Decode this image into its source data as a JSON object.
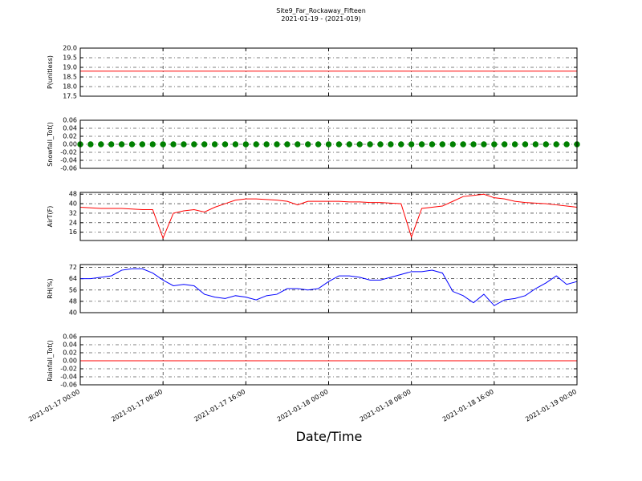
{
  "title": "Site9_Far_Rockaway_Fifteen",
  "subtitle": "2021-01-19 - (2021-019)",
  "xlabel": "Date/Time",
  "chart_data": [
    {
      "type": "line",
      "ylabel": "P(unitless)",
      "color": "#ff0000",
      "grid": true,
      "x": [
        "2021-01-17 00:00",
        "2021-01-19 00:00"
      ],
      "values": [
        18.8,
        18.8
      ],
      "xlim": [
        "2021-01-17 00:00",
        "2021-01-19 00:00"
      ],
      "xticks": [
        "2021-01-17 00:00",
        "2021-01-17 08:00",
        "2021-01-17 16:00",
        "2021-01-18 00:00",
        "2021-01-18 08:00",
        "2021-01-18 16:00",
        "2021-01-19 00:00"
      ],
      "ylim": [
        17.5,
        20.0
      ],
      "yticks": [
        17.5,
        {
          "value": 18,
          "label": "18.0"
        },
        18.5,
        {
          "value": 19,
          "label": "19.0"
        },
        19.5,
        {
          "value": 20,
          "label": "20.0"
        }
      ]
    },
    {
      "type": "scatter",
      "ylabel": "Snowfall_Tot()",
      "color": "#008000",
      "grid": true,
      "x": [
        "2021-01-17 00:00",
        "2021-01-17 01:00",
        "2021-01-17 02:00",
        "2021-01-17 03:00",
        "2021-01-17 04:00",
        "2021-01-17 05:00",
        "2021-01-17 06:00",
        "2021-01-17 07:00",
        "2021-01-17 08:00",
        "2021-01-17 09:00",
        "2021-01-17 10:00",
        "2021-01-17 11:00",
        "2021-01-17 12:00",
        "2021-01-17 13:00",
        "2021-01-17 14:00",
        "2021-01-17 15:00",
        "2021-01-17 16:00",
        "2021-01-17 17:00",
        "2021-01-17 18:00",
        "2021-01-17 19:00",
        "2021-01-17 20:00",
        "2021-01-17 21:00",
        "2021-01-17 22:00",
        "2021-01-17 23:00",
        "2021-01-18 00:00",
        "2021-01-18 01:00",
        "2021-01-18 02:00",
        "2021-01-18 03:00",
        "2021-01-18 04:00",
        "2021-01-18 05:00",
        "2021-01-18 06:00",
        "2021-01-18 07:00",
        "2021-01-18 08:00",
        "2021-01-18 09:00",
        "2021-01-18 10:00",
        "2021-01-18 11:00",
        "2021-01-18 12:00",
        "2021-01-18 13:00",
        "2021-01-18 14:00",
        "2021-01-18 15:00",
        "2021-01-18 16:00",
        "2021-01-18 17:00",
        "2021-01-18 18:00",
        "2021-01-18 19:00",
        "2021-01-18 20:00",
        "2021-01-18 21:00",
        "2021-01-18 22:00",
        "2021-01-18 23:00",
        "2021-01-19 00:00"
      ],
      "values": [
        0,
        0,
        0,
        0,
        0,
        0,
        0,
        0,
        0,
        0,
        0,
        0,
        0,
        0,
        0,
        0,
        0,
        0,
        0,
        0,
        0,
        0,
        0,
        0,
        0,
        0,
        0,
        0,
        0,
        0,
        0,
        0,
        0,
        0,
        0,
        0,
        0,
        0,
        0,
        0,
        0,
        0,
        0,
        0,
        0,
        0,
        0,
        0,
        0
      ],
      "xlim": [
        "2021-01-17 00:00",
        "2021-01-19 00:00"
      ],
      "xticks": [
        "2021-01-17 00:00",
        "2021-01-17 08:00",
        "2021-01-17 16:00",
        "2021-01-18 00:00",
        "2021-01-18 08:00",
        "2021-01-18 16:00",
        "2021-01-19 00:00"
      ],
      "ylim": [
        -0.06,
        0.06
      ],
      "yticks": [
        -0.06,
        -0.04,
        -0.02,
        {
          "value": 0,
          "label": "0.00"
        },
        0.02,
        0.04,
        0.06
      ]
    },
    {
      "type": "line",
      "ylabel": "AirT(F)",
      "color": "#ff0000",
      "grid": true,
      "x": [
        "2021-01-17 00:00",
        "2021-01-17 01:00",
        "2021-01-17 02:00",
        "2021-01-17 03:00",
        "2021-01-17 04:00",
        "2021-01-17 05:00",
        "2021-01-17 06:00",
        "2021-01-17 07:00",
        "2021-01-17 08:00",
        "2021-01-17 09:00",
        "2021-01-17 10:00",
        "2021-01-17 11:00",
        "2021-01-17 12:00",
        "2021-01-17 13:00",
        "2021-01-17 14:00",
        "2021-01-17 15:00",
        "2021-01-17 16:00",
        "2021-01-17 17:00",
        "2021-01-17 18:00",
        "2021-01-17 19:00",
        "2021-01-17 20:00",
        "2021-01-17 21:00",
        "2021-01-17 22:00",
        "2021-01-17 23:00",
        "2021-01-18 00:00",
        "2021-01-18 01:00",
        "2021-01-18 02:00",
        "2021-01-18 03:00",
        "2021-01-18 04:00",
        "2021-01-18 05:00",
        "2021-01-18 06:00",
        "2021-01-18 07:00",
        "2021-01-18 08:00",
        "2021-01-18 09:00",
        "2021-01-18 10:00",
        "2021-01-18 11:00",
        "2021-01-18 12:00",
        "2021-01-18 13:00",
        "2021-01-18 14:00",
        "2021-01-18 15:00",
        "2021-01-18 16:00",
        "2021-01-18 17:00",
        "2021-01-18 18:00",
        "2021-01-18 19:00",
        "2021-01-18 20:00",
        "2021-01-18 21:00",
        "2021-01-18 22:00",
        "2021-01-18 23:00",
        "2021-01-19 00:00"
      ],
      "values": [
        37,
        36.5,
        36,
        36,
        36,
        35.5,
        35,
        35,
        11,
        32,
        34,
        35,
        33,
        37,
        40,
        43,
        44,
        44,
        43.5,
        43,
        42,
        39,
        42,
        42,
        42,
        42,
        41.5,
        41.5,
        41,
        41,
        40.5,
        40,
        12,
        36,
        37,
        38,
        42,
        46,
        47,
        48,
        45,
        44,
        42,
        41,
        40.5,
        40,
        39,
        38,
        37
      ],
      "xlim": [
        "2021-01-17 00:00",
        "2021-01-19 00:00"
      ],
      "xticks": [
        "2021-01-17 00:00",
        "2021-01-17 08:00",
        "2021-01-17 16:00",
        "2021-01-18 00:00",
        "2021-01-18 08:00",
        "2021-01-18 16:00",
        "2021-01-19 00:00"
      ],
      "ylim": [
        9,
        49.5
      ],
      "yticks": [
        16,
        24,
        32,
        40,
        48
      ]
    },
    {
      "type": "line",
      "ylabel": "RH(%)",
      "color": "#0000ff",
      "grid": true,
      "x": [
        "2021-01-17 00:00",
        "2021-01-17 01:00",
        "2021-01-17 02:00",
        "2021-01-17 03:00",
        "2021-01-17 04:00",
        "2021-01-17 05:00",
        "2021-01-17 06:00",
        "2021-01-17 07:00",
        "2021-01-17 08:00",
        "2021-01-17 09:00",
        "2021-01-17 10:00",
        "2021-01-17 11:00",
        "2021-01-17 12:00",
        "2021-01-17 13:00",
        "2021-01-17 14:00",
        "2021-01-17 15:00",
        "2021-01-17 16:00",
        "2021-01-17 17:00",
        "2021-01-17 18:00",
        "2021-01-17 19:00",
        "2021-01-17 20:00",
        "2021-01-17 21:00",
        "2021-01-17 22:00",
        "2021-01-17 23:00",
        "2021-01-18 00:00",
        "2021-01-18 01:00",
        "2021-01-18 02:00",
        "2021-01-18 03:00",
        "2021-01-18 04:00",
        "2021-01-18 05:00",
        "2021-01-18 06:00",
        "2021-01-18 07:00",
        "2021-01-18 08:00",
        "2021-01-18 09:00",
        "2021-01-18 10:00",
        "2021-01-18 11:00",
        "2021-01-18 12:00",
        "2021-01-18 13:00",
        "2021-01-18 14:00",
        "2021-01-18 15:00",
        "2021-01-18 16:00",
        "2021-01-18 17:00",
        "2021-01-18 18:00",
        "2021-01-18 19:00",
        "2021-01-18 20:00",
        "2021-01-18 21:00",
        "2021-01-18 22:00",
        "2021-01-18 23:00",
        "2021-01-19 00:00"
      ],
      "values": [
        64,
        64,
        65,
        66,
        70,
        71,
        71,
        68,
        63,
        59,
        60,
        59,
        53,
        51,
        50,
        52,
        51,
        49,
        52,
        53,
        57,
        57,
        56,
        57,
        62,
        66,
        66,
        65,
        63,
        63,
        65,
        67,
        69,
        69,
        70,
        68,
        55,
        52,
        47,
        53,
        45,
        49,
        50,
        52,
        57,
        61,
        66,
        60,
        62
      ],
      "xlim": [
        "2021-01-17 00:00",
        "2021-01-19 00:00"
      ],
      "xticks": [
        "2021-01-17 00:00",
        "2021-01-17 08:00",
        "2021-01-17 16:00",
        "2021-01-18 00:00",
        "2021-01-18 08:00",
        "2021-01-18 16:00",
        "2021-01-19 00:00"
      ],
      "ylim": [
        40,
        74
      ],
      "yticks": [
        40,
        48,
        56,
        64,
        72
      ]
    },
    {
      "type": "line",
      "ylabel": "Rainfall_Tot()",
      "color": "#ff0000",
      "grid": true,
      "x": [
        "2021-01-17 00:00",
        "2021-01-19 00:00"
      ],
      "values": [
        0,
        0
      ],
      "xlim": [
        "2021-01-17 00:00",
        "2021-01-19 00:00"
      ],
      "xticks": [
        "2021-01-17 00:00",
        "2021-01-17 08:00",
        "2021-01-17 16:00",
        "2021-01-18 00:00",
        "2021-01-18 08:00",
        "2021-01-18 16:00",
        "2021-01-19 00:00"
      ],
      "ylim": [
        -0.06,
        0.06
      ],
      "yticks": [
        -0.06,
        -0.04,
        -0.02,
        {
          "value": 0,
          "label": "0.00"
        },
        0.02,
        0.04,
        0.06
      ]
    }
  ]
}
